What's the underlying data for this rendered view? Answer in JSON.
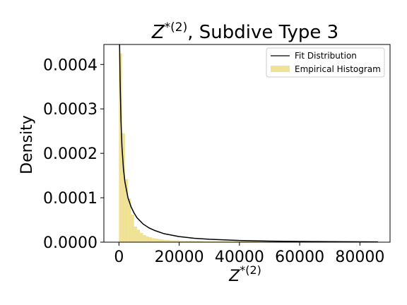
{
  "chart_data": {
    "type": "bar",
    "title": {
      "symbol": "Z",
      "sup": "*(2)",
      "rest": ", Subdive Type 3"
    },
    "xlabel": {
      "symbol": "Z",
      "sup": "*(2)"
    },
    "ylabel": "Density",
    "xlim": [
      -5000,
      90000
    ],
    "ylim": [
      0,
      0.000445
    ],
    "x_ticks": [
      0,
      20000,
      40000,
      60000,
      80000
    ],
    "x_tick_labels": [
      "0",
      "20000",
      "40000",
      "60000",
      "80000"
    ],
    "y_ticks": [
      0,
      0.0001,
      0.0002,
      0.0003,
      0.0004
    ],
    "y_tick_labels": [
      "0.0000",
      "0.0001",
      "0.0002",
      "0.0003",
      "0.0004"
    ],
    "grid": false,
    "legend_position": "top-right",
    "colors": {
      "histogram": "#e6d25a",
      "fit": "#000000"
    },
    "series": [
      {
        "name": "Empirical Histogram",
        "kind": "histogram",
        "bin_width": 1000,
        "bin_starts": [
          0,
          1000,
          2000,
          3000,
          4000,
          5000,
          6000,
          7000,
          8000,
          9000,
          10000,
          11000,
          12000,
          13000,
          14000,
          15000,
          16000,
          17000,
          18000,
          19000,
          20000,
          22000,
          25000,
          28000,
          32000,
          36000,
          40000,
          46000,
          52000,
          58000,
          66000,
          74000,
          80000
        ],
        "values": [
          0.000425,
          0.000245,
          0.000142,
          9.8e-05,
          6.2e-05,
          3.5e-05,
          2.8e-05,
          2.1e-05,
          1.6e-05,
          1.3e-05,
          1.1e-05,
          9e-06,
          8e-06,
          7e-06,
          6e-06,
          5e-06,
          5e-06,
          4e-06,
          4e-06,
          4e-06,
          3e-06,
          3e-06,
          3e-06,
          2e-06,
          2e-06,
          2e-06,
          2e-06,
          1e-06,
          1e-06,
          1e-06,
          1e-06,
          1e-06,
          1e-06
        ]
      },
      {
        "name": "Fit Distribution",
        "kind": "line",
        "x": [
          200,
          400,
          700,
          1000,
          1500,
          2000,
          3000,
          4000,
          5000,
          6000,
          8000,
          10000,
          12000,
          15000,
          20000,
          25000,
          30000,
          40000,
          50000,
          60000,
          70000,
          80000,
          86000
        ],
        "y": [
          0.00046,
          0.00036,
          0.00027,
          0.000215,
          0.000165,
          0.000135,
          0.0001,
          8e-05,
          6.6e-05,
          5.5e-05,
          4.1e-05,
          3.2e-05,
          2.6e-05,
          1.9e-05,
          1.25e-05,
          8.8e-06,
          6.5e-06,
          3.8e-06,
          2.4e-06,
          1.6e-06,
          1.1e-06,
          8e-07,
          6e-07
        ]
      }
    ]
  }
}
